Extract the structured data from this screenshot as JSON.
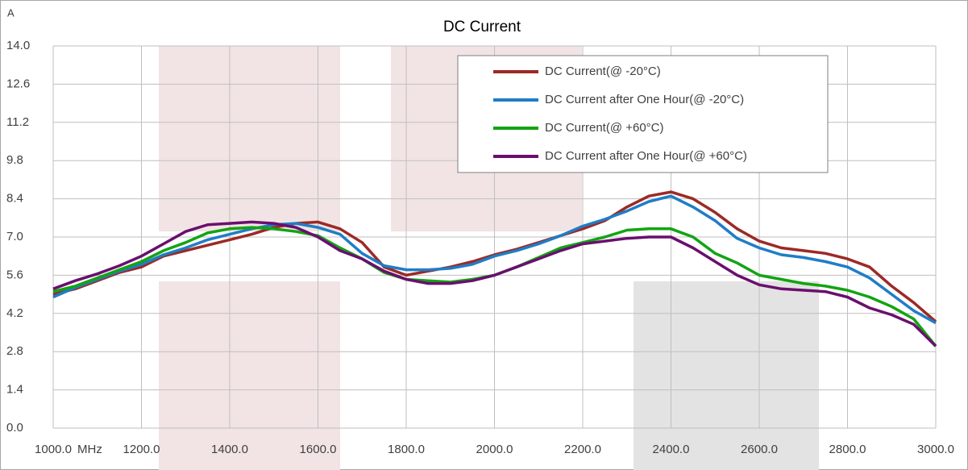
{
  "chart_data": {
    "type": "line",
    "title": "DC Current",
    "y_unit": "A",
    "x_unit": "MHz",
    "x": [
      1000,
      1050,
      1100,
      1150,
      1200,
      1250,
      1300,
      1350,
      1400,
      1450,
      1500,
      1550,
      1600,
      1650,
      1700,
      1750,
      1800,
      1850,
      1900,
      1950,
      2000,
      2050,
      2100,
      2150,
      2200,
      2250,
      2300,
      2350,
      2400,
      2450,
      2500,
      2550,
      2600,
      2650,
      2700,
      2750,
      2800,
      2850,
      2900,
      2950,
      3000
    ],
    "series": [
      {
        "name": "DC Current(@ -20°C)",
        "color": "#9b2a26",
        "values": [
          4.9,
          5.1,
          5.4,
          5.7,
          5.9,
          6.3,
          6.5,
          6.7,
          6.9,
          7.1,
          7.35,
          7.5,
          7.55,
          7.3,
          6.8,
          5.9,
          5.6,
          5.75,
          5.9,
          6.1,
          6.35,
          6.55,
          6.8,
          7.05,
          7.3,
          7.6,
          8.1,
          8.5,
          8.65,
          8.4,
          7.9,
          7.3,
          6.85,
          6.6,
          6.5,
          6.4,
          6.2,
          5.9,
          5.2,
          4.6,
          3.9
        ]
      },
      {
        "name": "DC Current after One Hour(@ -20°C)",
        "color": "#1f7dc6",
        "values": [
          4.8,
          5.15,
          5.45,
          5.75,
          6.0,
          6.35,
          6.6,
          6.9,
          7.1,
          7.3,
          7.45,
          7.5,
          7.35,
          7.1,
          6.4,
          5.95,
          5.8,
          5.8,
          5.85,
          6.0,
          6.3,
          6.5,
          6.75,
          7.05,
          7.4,
          7.65,
          7.95,
          8.3,
          8.5,
          8.1,
          7.6,
          6.95,
          6.6,
          6.35,
          6.25,
          6.1,
          5.9,
          5.5,
          4.9,
          4.3,
          3.85
        ]
      },
      {
        "name": "DC Current(@ +60°C)",
        "color": "#12a412",
        "values": [
          5.0,
          5.2,
          5.5,
          5.8,
          6.1,
          6.5,
          6.8,
          7.15,
          7.3,
          7.35,
          7.3,
          7.2,
          7.05,
          6.6,
          6.2,
          5.7,
          5.45,
          5.4,
          5.35,
          5.45,
          5.6,
          5.9,
          6.25,
          6.6,
          6.8,
          7.0,
          7.25,
          7.3,
          7.3,
          7.0,
          6.4,
          6.05,
          5.6,
          5.45,
          5.3,
          5.2,
          5.05,
          4.8,
          4.45,
          4.0,
          3.0
        ]
      },
      {
        "name": "DC Current after One Hour(@ +60°C)",
        "color": "#6a0f6e",
        "values": [
          5.1,
          5.4,
          5.65,
          5.95,
          6.3,
          6.75,
          7.2,
          7.45,
          7.5,
          7.55,
          7.5,
          7.35,
          7.0,
          6.5,
          6.2,
          5.75,
          5.45,
          5.3,
          5.3,
          5.4,
          5.6,
          5.9,
          6.2,
          6.5,
          6.75,
          6.85,
          6.95,
          7.0,
          7.0,
          6.6,
          6.1,
          5.6,
          5.25,
          5.1,
          5.05,
          5.0,
          4.8,
          4.4,
          4.15,
          3.8,
          3.0
        ]
      }
    ],
    "xlim": [
      1000,
      3000
    ],
    "xticks": [
      {
        "value": 1000,
        "label": "1000.0"
      },
      {
        "value": 1200,
        "label": "1200.0"
      },
      {
        "value": 1400,
        "label": "1400.0"
      },
      {
        "value": 1600,
        "label": "1600.0"
      },
      {
        "value": 1800,
        "label": "1800.0"
      },
      {
        "value": 2000,
        "label": "2000.0"
      },
      {
        "value": 2200,
        "label": "2200.0"
      },
      {
        "value": 2400,
        "label": "2400.0"
      },
      {
        "value": 2600,
        "label": "2600.0"
      },
      {
        "value": 2800,
        "label": "2800.0"
      },
      {
        "value": 3000,
        "label": "3000.0"
      }
    ],
    "ylim": [
      0,
      14
    ],
    "yticks": [
      {
        "value": 0,
        "label": "0.0"
      },
      1.4,
      2.8,
      4.2,
      5.6,
      {
        "value": 7,
        "label": "7.0"
      },
      8.4,
      9.8,
      11.2,
      12.6,
      {
        "value": 14,
        "label": "14.0"
      }
    ],
    "grid": true,
    "legend": "top-right"
  }
}
